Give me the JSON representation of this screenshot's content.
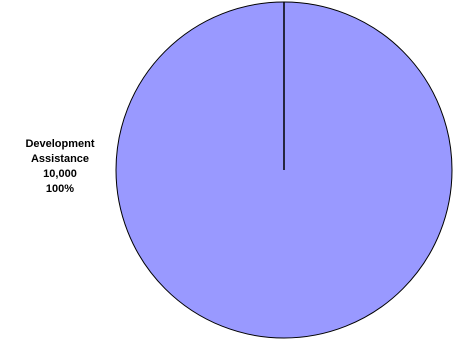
{
  "chart_data": {
    "type": "pie",
    "title": "",
    "slices": [
      {
        "name": "Development Assistance",
        "value": 10000,
        "value_label": "10,000",
        "percent": 100,
        "percent_label": "100%",
        "label_lines": [
          "Development",
          "Assistance",
          "10,000",
          "100%"
        ],
        "color": "#9999ff"
      }
    ],
    "legend": "none",
    "outline_color": "#000000"
  }
}
